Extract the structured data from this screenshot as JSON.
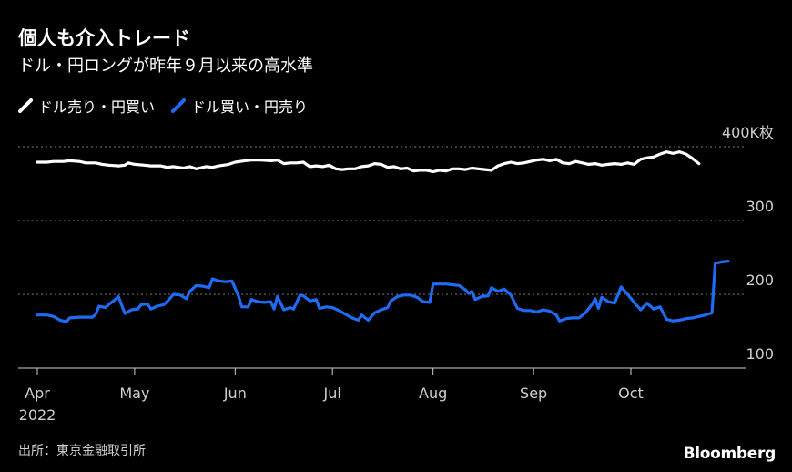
{
  "header": {
    "title": "個人も介入トレード",
    "subtitle": "ドル・円ロングが昨年９月以来の高水準"
  },
  "footer": {
    "source": "出所：東京金融取引所",
    "brand": "Bloomberg"
  },
  "colors": {
    "background": "#000000",
    "series_sell": "#ffffff",
    "series_buy": "#1e6cf5",
    "grid": "#777777"
  },
  "chart_data": {
    "type": "line",
    "title": "個人も介入トレード",
    "subtitle": "ドル・円ロングが昨年９月以来の高水準",
    "ylabel": "",
    "xlabel": "",
    "ylim": [
      100,
      400
    ],
    "y_ticks": [
      {
        "value": 400,
        "label": "400K枚"
      },
      {
        "value": 300,
        "label": "300"
      },
      {
        "value": 200,
        "label": "200"
      },
      {
        "value": 100,
        "label": "100"
      }
    ],
    "x_ticks": [
      {
        "day": 0,
        "label": "Apr",
        "sublabel": "2022"
      },
      {
        "day": 30,
        "label": "May",
        "sublabel": ""
      },
      {
        "day": 61,
        "label": "Jun",
        "sublabel": ""
      },
      {
        "day": 91,
        "label": "Jul",
        "sublabel": ""
      },
      {
        "day": 122,
        "label": "Aug",
        "sublabel": ""
      },
      {
        "day": 153,
        "label": "Sep",
        "sublabel": ""
      },
      {
        "day": 183,
        "label": "Oct",
        "sublabel": ""
      }
    ],
    "grid": true,
    "legend_position": "top-left",
    "series": [
      {
        "name": "ドル売り・円買い",
        "color": "#ffffff",
        "points": [
          [
            0,
            379
          ],
          [
            3,
            379
          ],
          [
            5,
            380
          ],
          [
            8,
            380
          ],
          [
            10,
            381
          ],
          [
            13,
            380
          ],
          [
            15,
            378
          ],
          [
            18,
            378
          ],
          [
            20,
            376
          ],
          [
            22,
            375
          ],
          [
            25,
            374
          ],
          [
            27,
            375
          ],
          [
            28,
            378
          ],
          [
            30,
            376
          ],
          [
            33,
            375
          ],
          [
            35,
            374
          ],
          [
            38,
            374
          ],
          [
            40,
            372
          ],
          [
            42,
            373
          ],
          [
            45,
            371
          ],
          [
            47,
            373
          ],
          [
            49,
            370
          ],
          [
            52,
            373
          ],
          [
            54,
            372
          ],
          [
            56,
            374
          ],
          [
            59,
            376
          ],
          [
            61,
            379
          ],
          [
            64,
            381
          ],
          [
            66,
            382
          ],
          [
            69,
            382
          ],
          [
            72,
            381
          ],
          [
            74,
            382
          ],
          [
            76,
            377
          ],
          [
            78,
            378
          ],
          [
            80,
            378
          ],
          [
            82,
            379
          ],
          [
            84,
            373
          ],
          [
            86,
            374
          ],
          [
            88,
            373
          ],
          [
            90,
            375
          ],
          [
            92,
            370
          ],
          [
            94,
            369
          ],
          [
            96,
            370
          ],
          [
            98,
            370
          ],
          [
            100,
            373
          ],
          [
            102,
            374
          ],
          [
            104,
            377
          ],
          [
            106,
            376
          ],
          [
            108,
            372
          ],
          [
            110,
            373
          ],
          [
            112,
            370
          ],
          [
            114,
            371
          ],
          [
            116,
            367
          ],
          [
            118,
            368
          ],
          [
            120,
            368
          ],
          [
            122,
            366
          ],
          [
            124,
            368
          ],
          [
            126,
            367
          ],
          [
            128,
            370
          ],
          [
            130,
            370
          ],
          [
            132,
            369
          ],
          [
            134,
            371
          ],
          [
            136,
            370
          ],
          [
            138,
            369
          ],
          [
            140,
            368
          ],
          [
            142,
            374
          ],
          [
            144,
            377
          ],
          [
            146,
            379
          ],
          [
            148,
            377
          ],
          [
            150,
            378
          ],
          [
            152,
            380
          ],
          [
            154,
            382
          ],
          [
            156,
            383
          ],
          [
            158,
            381
          ],
          [
            160,
            383
          ],
          [
            162,
            378
          ],
          [
            164,
            377
          ],
          [
            166,
            380
          ],
          [
            168,
            378
          ],
          [
            170,
            376
          ],
          [
            172,
            377
          ],
          [
            174,
            375
          ],
          [
            176,
            376
          ],
          [
            178,
            377
          ],
          [
            180,
            376
          ],
          [
            182,
            378
          ],
          [
            184,
            376
          ],
          [
            186,
            383
          ],
          [
            188,
            385
          ],
          [
            190,
            386
          ],
          [
            192,
            390
          ],
          [
            194,
            393
          ],
          [
            196,
            391
          ],
          [
            198,
            393
          ],
          [
            200,
            390
          ],
          [
            202,
            384
          ],
          [
            204,
            377
          ]
        ]
      },
      {
        "name": "ドル買い・円売り",
        "color": "#1e6cf5",
        "points": [
          [
            0,
            172
          ],
          [
            3,
            172
          ],
          [
            5,
            170
          ],
          [
            7,
            165
          ],
          [
            9,
            163
          ],
          [
            10,
            168
          ],
          [
            13,
            169
          ],
          [
            15,
            169
          ],
          [
            17,
            169
          ],
          [
            18,
            173
          ],
          [
            19,
            184
          ],
          [
            21,
            182
          ],
          [
            22,
            186
          ],
          [
            24,
            193
          ],
          [
            25,
            197
          ],
          [
            27,
            174
          ],
          [
            29,
            179
          ],
          [
            31,
            180
          ],
          [
            32,
            186
          ],
          [
            34,
            187
          ],
          [
            35,
            180
          ],
          [
            37,
            184
          ],
          [
            39,
            186
          ],
          [
            40,
            190
          ],
          [
            42,
            200
          ],
          [
            44,
            199
          ],
          [
            46,
            194
          ],
          [
            47,
            204
          ],
          [
            49,
            212
          ],
          [
            51,
            211
          ],
          [
            53,
            209
          ],
          [
            54,
            221
          ],
          [
            56,
            218
          ],
          [
            58,
            217
          ],
          [
            60,
            218
          ],
          [
            62,
            198
          ],
          [
            63,
            183
          ],
          [
            65,
            183
          ],
          [
            66,
            193
          ],
          [
            68,
            190
          ],
          [
            70,
            189
          ],
          [
            72,
            190
          ],
          [
            73,
            180
          ],
          [
            74,
            197
          ],
          [
            76,
            179
          ],
          [
            78,
            182
          ],
          [
            79,
            180
          ],
          [
            81,
            199
          ],
          [
            82,
            198
          ],
          [
            84,
            191
          ],
          [
            86,
            193
          ],
          [
            87,
            181
          ],
          [
            89,
            183
          ],
          [
            91,
            182
          ],
          [
            93,
            178
          ],
          [
            95,
            173
          ],
          [
            97,
            168
          ],
          [
            99,
            165
          ],
          [
            100,
            172
          ],
          [
            102,
            165
          ],
          [
            104,
            175
          ],
          [
            106,
            179
          ],
          [
            108,
            182
          ],
          [
            109,
            191
          ],
          [
            111,
            197
          ],
          [
            113,
            199
          ],
          [
            115,
            199
          ],
          [
            117,
            196
          ],
          [
            119,
            190
          ],
          [
            121,
            189
          ],
          [
            122,
            214
          ],
          [
            124,
            214
          ],
          [
            126,
            214
          ],
          [
            128,
            213
          ],
          [
            130,
            212
          ],
          [
            132,
            206
          ],
          [
            133,
            201
          ],
          [
            134,
            204
          ],
          [
            135,
            193
          ],
          [
            137,
            197
          ],
          [
            139,
            198
          ],
          [
            140,
            209
          ],
          [
            142,
            204
          ],
          [
            144,
            207
          ],
          [
            146,
            199
          ],
          [
            148,
            181
          ],
          [
            150,
            178
          ],
          [
            152,
            178
          ],
          [
            154,
            176
          ],
          [
            156,
            179
          ],
          [
            158,
            177
          ],
          [
            160,
            172
          ],
          [
            161,
            164
          ],
          [
            163,
            167
          ],
          [
            165,
            168
          ],
          [
            167,
            168
          ],
          [
            169,
            175
          ],
          [
            171,
            186
          ],
          [
            172,
            194
          ],
          [
            173,
            181
          ],
          [
            174,
            196
          ],
          [
            176,
            190
          ],
          [
            178,
            188
          ],
          [
            180,
            210
          ],
          [
            182,
            200
          ],
          [
            184,
            189
          ],
          [
            186,
            179
          ],
          [
            188,
            188
          ],
          [
            190,
            180
          ],
          [
            192,
            183
          ],
          [
            194,
            166
          ],
          [
            196,
            164
          ],
          [
            198,
            165
          ],
          [
            200,
            167
          ],
          [
            202,
            168
          ],
          [
            204,
            170
          ],
          [
            206,
            172
          ],
          [
            208,
            175
          ],
          [
            209,
            242
          ],
          [
            211,
            244
          ],
          [
            213,
            245
          ]
        ]
      }
    ]
  }
}
